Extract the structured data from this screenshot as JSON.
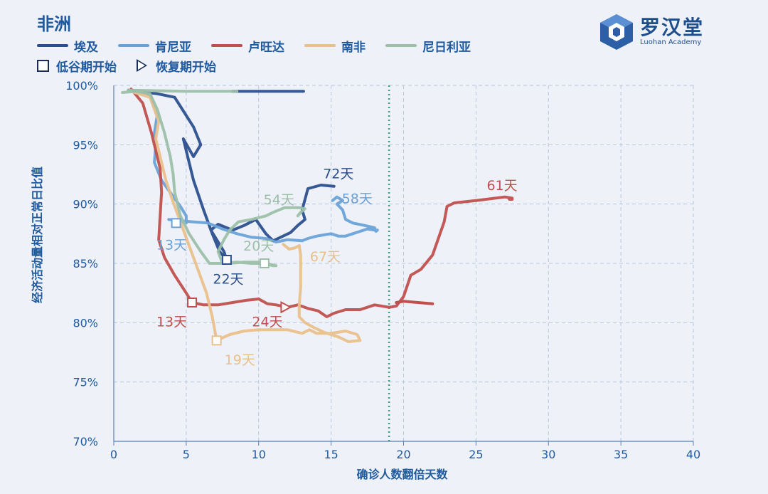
{
  "header": {
    "title": "非洲"
  },
  "legend": {
    "series": [
      {
        "label": "埃及",
        "color": "#2b4f8e"
      },
      {
        "label": "肯尼亚",
        "color": "#6aa2d8"
      },
      {
        "label": "卢旺达",
        "color": "#c0504d"
      },
      {
        "label": "南非",
        "color": "#e9c08b"
      },
      {
        "label": "尼日利亚",
        "color": "#9cbfa8"
      }
    ],
    "markers": [
      {
        "label": "低谷期开始",
        "icon": "square-marker-icon"
      },
      {
        "label": "恢复期开始",
        "icon": "triangle-marker-icon"
      }
    ]
  },
  "logo": {
    "name": "罗汉堂",
    "subtitle": "Luohan Academy"
  },
  "chart_data": {
    "type": "line",
    "xlabel": "确诊人数翻倍天数",
    "ylabel": "经济活动量相对正常日比值",
    "xlim": [
      0,
      40
    ],
    "ylim": [
      70,
      100
    ],
    "x_ticks": [
      "0",
      "5",
      "10",
      "15",
      "20",
      "25",
      "30",
      "35",
      "40"
    ],
    "y_ticks": [
      "70%",
      "75%",
      "80%",
      "85%",
      "90%",
      "95%",
      "100%"
    ],
    "grid": "dashed",
    "reference_line": {
      "x": 19,
      "style": "dotted",
      "color": "#3aa07a"
    },
    "series": [
      {
        "name": "埃及",
        "color": "#2b4f8e",
        "points": [
          [
            1,
            99.6
          ],
          [
            3,
            99.3
          ],
          [
            4.2,
            99
          ],
          [
            5.5,
            96.5
          ],
          [
            6,
            95
          ],
          [
            5.5,
            94
          ],
          [
            4.8,
            95.5
          ],
          [
            5.5,
            92
          ],
          [
            6.2,
            89.5
          ],
          [
            6.8,
            87.5
          ],
          [
            7.3,
            86
          ],
          [
            7.8,
            85.3
          ],
          [
            7.6,
            86
          ],
          [
            6.7,
            87.8
          ],
          [
            7.2,
            88.3
          ],
          [
            8.2,
            87.8
          ],
          [
            9,
            88.2
          ],
          [
            9.8,
            88.7
          ],
          [
            10.5,
            87.5
          ],
          [
            11,
            86.9
          ],
          [
            12.2,
            87.6
          ],
          [
            12.7,
            88.2
          ],
          [
            13.2,
            88.7
          ],
          [
            13,
            89.5
          ],
          [
            13.4,
            91.3
          ],
          [
            14.3,
            91.6
          ],
          [
            15.2,
            91.5
          ]
        ],
        "trough_marker": [
          7.8,
          85.3
        ],
        "annotation": "22天",
        "annotation_pos": [
          7.9,
          83.7
        ],
        "end_label": "72天",
        "end_label_pos": [
          15.5,
          92.6
        ]
      },
      {
        "name": "埃及",
        "color": "#2b4f8e",
        "points": [
          [
            8.2,
            99.5
          ],
          [
            13.1,
            99.5
          ]
        ]
      },
      {
        "name": "肯尼亚",
        "color": "#6aa2d8",
        "points": [
          [
            1,
            99.6
          ],
          [
            2.5,
            99.2
          ],
          [
            3,
            97.5
          ],
          [
            2.8,
            96
          ],
          [
            2.9,
            95
          ],
          [
            2.8,
            93.5
          ],
          [
            3.3,
            92
          ],
          [
            4,
            90.8
          ],
          [
            4.6,
            89.8
          ],
          [
            5,
            89
          ],
          [
            5,
            88.4
          ],
          [
            4.4,
            88.6
          ],
          [
            3.8,
            88.7
          ],
          [
            4.5,
            88.6
          ],
          [
            5.5,
            88.5
          ],
          [
            6.5,
            88.4
          ],
          [
            7.5,
            87.9
          ],
          [
            8.5,
            87.5
          ],
          [
            9.5,
            87.2
          ],
          [
            10.5,
            87.1
          ],
          [
            11.2,
            86.8
          ],
          [
            12,
            87
          ],
          [
            13,
            86.9
          ],
          [
            13.4,
            87.1
          ],
          [
            14,
            87.3
          ],
          [
            14.5,
            87.4
          ],
          [
            15,
            87.5
          ],
          [
            15.5,
            87.3
          ],
          [
            16,
            87.3
          ],
          [
            16.5,
            87.5
          ],
          [
            17,
            87.7
          ],
          [
            17.5,
            87.9
          ],
          [
            18,
            87.8
          ],
          [
            18.2,
            87.8
          ],
          [
            18.1,
            87.7
          ],
          [
            18,
            88
          ],
          [
            17.3,
            88.2
          ],
          [
            16.5,
            88.4
          ],
          [
            16,
            88.7
          ],
          [
            15.8,
            89.5
          ],
          [
            15.4,
            90
          ],
          [
            15.8,
            90.3
          ],
          [
            15.4,
            90.6
          ],
          [
            15.1,
            90.3
          ]
        ],
        "trough_marker": [
          4.3,
          88.4
        ],
        "annotation": "13天",
        "annotation_pos": [
          4.0,
          86.6
        ],
        "end_label": "58天",
        "end_label_pos": [
          16.8,
          90.5
        ]
      },
      {
        "name": "卢旺达",
        "color": "#c0504d",
        "points": [
          [
            1.2,
            99.7
          ],
          [
            2,
            98.5
          ],
          [
            2.6,
            96
          ],
          [
            3.2,
            93
          ],
          [
            3.3,
            91
          ],
          [
            3.2,
            89
          ],
          [
            3.1,
            87
          ],
          [
            3.5,
            85.5
          ],
          [
            4.2,
            84
          ],
          [
            5,
            82.5
          ],
          [
            5.4,
            81.7
          ],
          [
            6.2,
            81.5
          ],
          [
            7.2,
            81.5
          ],
          [
            8.2,
            81.7
          ],
          [
            9.2,
            81.9
          ],
          [
            10,
            82
          ],
          [
            10.6,
            81.6
          ],
          [
            11.2,
            81.5
          ],
          [
            12,
            81.3
          ],
          [
            12.7,
            81.5
          ],
          [
            13.4,
            81.2
          ],
          [
            14.1,
            81
          ],
          [
            14.7,
            80.5
          ],
          [
            15.2,
            80.8
          ],
          [
            16,
            81.1
          ],
          [
            17,
            81.1
          ],
          [
            18,
            81.5
          ],
          [
            19,
            81.3
          ],
          [
            19.5,
            81.4
          ],
          [
            20,
            82.2
          ],
          [
            20.5,
            84
          ],
          [
            21.2,
            84.5
          ],
          [
            22,
            85.7
          ],
          [
            22.8,
            88.5
          ],
          [
            23,
            89.8
          ],
          [
            23.5,
            90.1
          ],
          [
            25,
            90.3
          ],
          [
            27,
            90.6
          ],
          [
            27.5,
            90.5
          ],
          [
            27.3,
            90.4
          ],
          [
            27.5,
            90.4
          ]
        ],
        "branch": [
          [
            19.5,
            81.7
          ],
          [
            20,
            81.8
          ],
          [
            21,
            81.7
          ],
          [
            22,
            81.6
          ]
        ],
        "trough_marker": [
          5.4,
          81.7
        ],
        "recovery_marker": [
          11.8,
          81.3
        ],
        "annotation_trough": "13天",
        "annotation_trough_pos": [
          4.0,
          80.1
        ],
        "annotation_recovery": "24天",
        "annotation_recovery_pos": [
          10.6,
          80.1
        ],
        "end_label": "61天",
        "end_label_pos": [
          26.8,
          91.6
        ]
      },
      {
        "name": "南非",
        "color": "#e9c08b",
        "points": [
          [
            1.2,
            99.5
          ],
          [
            2.5,
            99
          ],
          [
            3.1,
            97
          ],
          [
            2.9,
            95.5
          ],
          [
            3.2,
            94
          ],
          [
            3.6,
            92
          ],
          [
            4,
            90.5
          ],
          [
            4.6,
            88.5
          ],
          [
            5.2,
            86.5
          ],
          [
            5.8,
            84.5
          ],
          [
            6.4,
            82.5
          ],
          [
            6.8,
            80.5
          ],
          [
            7.1,
            78.5
          ],
          [
            8,
            79
          ],
          [
            9,
            79.3
          ],
          [
            10,
            79.4
          ],
          [
            11,
            79.4
          ],
          [
            12,
            79.4
          ],
          [
            13,
            79.1
          ],
          [
            13.5,
            79.4
          ],
          [
            14,
            79.1
          ],
          [
            15,
            79.1
          ],
          [
            16,
            79.3
          ],
          [
            16.8,
            79
          ],
          [
            17,
            78.5
          ],
          [
            16.2,
            78.4
          ],
          [
            15.5,
            78.8
          ],
          [
            14.5,
            79.2
          ],
          [
            13.8,
            79.6
          ],
          [
            13.2,
            80
          ],
          [
            12.8,
            80.5
          ],
          [
            12.8,
            81.5
          ],
          [
            12.9,
            83
          ],
          [
            12.9,
            84.5
          ],
          [
            12.9,
            85.7
          ],
          [
            12.8,
            86.5
          ],
          [
            12.5,
            86.3
          ],
          [
            12.1,
            86.2
          ],
          [
            11.7,
            86.6
          ]
        ],
        "trough_marker": [
          7.1,
          78.5
        ],
        "annotation": "19天",
        "annotation_pos": [
          8.7,
          76.9
        ],
        "end_label": "67天",
        "end_label_pos": [
          14.6,
          85.6
        ]
      },
      {
        "name": "尼日利亚",
        "color": "#9cbfa8",
        "points": [
          [
            0.6,
            99.4
          ],
          [
            1.5,
            99.5
          ],
          [
            2.5,
            99.3
          ],
          [
            3,
            98
          ],
          [
            3.5,
            96
          ],
          [
            3.9,
            94
          ],
          [
            4.1,
            92.5
          ],
          [
            4.2,
            91
          ],
          [
            4.6,
            89
          ],
          [
            5.2,
            87.5
          ],
          [
            6,
            86
          ],
          [
            6.6,
            85
          ],
          [
            7,
            85
          ],
          [
            8,
            85
          ],
          [
            9,
            85.1
          ],
          [
            10,
            85.1
          ],
          [
            11,
            84.8
          ],
          [
            11.2,
            84.8
          ],
          [
            10.5,
            85
          ],
          [
            9.5,
            85
          ],
          [
            8.5,
            85.1
          ],
          [
            7.5,
            85
          ],
          [
            7.2,
            86
          ],
          [
            7.6,
            87
          ],
          [
            8,
            87.8
          ],
          [
            8.6,
            88.5
          ],
          [
            9.5,
            88.7
          ],
          [
            10.5,
            89
          ],
          [
            11,
            89.3
          ],
          [
            11.8,
            89.7
          ],
          [
            12.8,
            89.7
          ],
          [
            13.2,
            89.6
          ],
          [
            12.9,
            89.3
          ],
          [
            12.7,
            89
          ]
        ],
        "trough_marker": [
          10.4,
          85.0
        ],
        "annotation": "20天",
        "annotation_pos": [
          10.0,
          86.5
        ],
        "end_label": "54天",
        "end_label_pos": [
          11.4,
          90.4
        ]
      },
      {
        "name": "尼日利亚",
        "color": "#9cbfa8",
        "points": [
          [
            1,
            99.6
          ],
          [
            5,
            99.5
          ],
          [
            8.5,
            99.5
          ]
        ]
      }
    ]
  }
}
